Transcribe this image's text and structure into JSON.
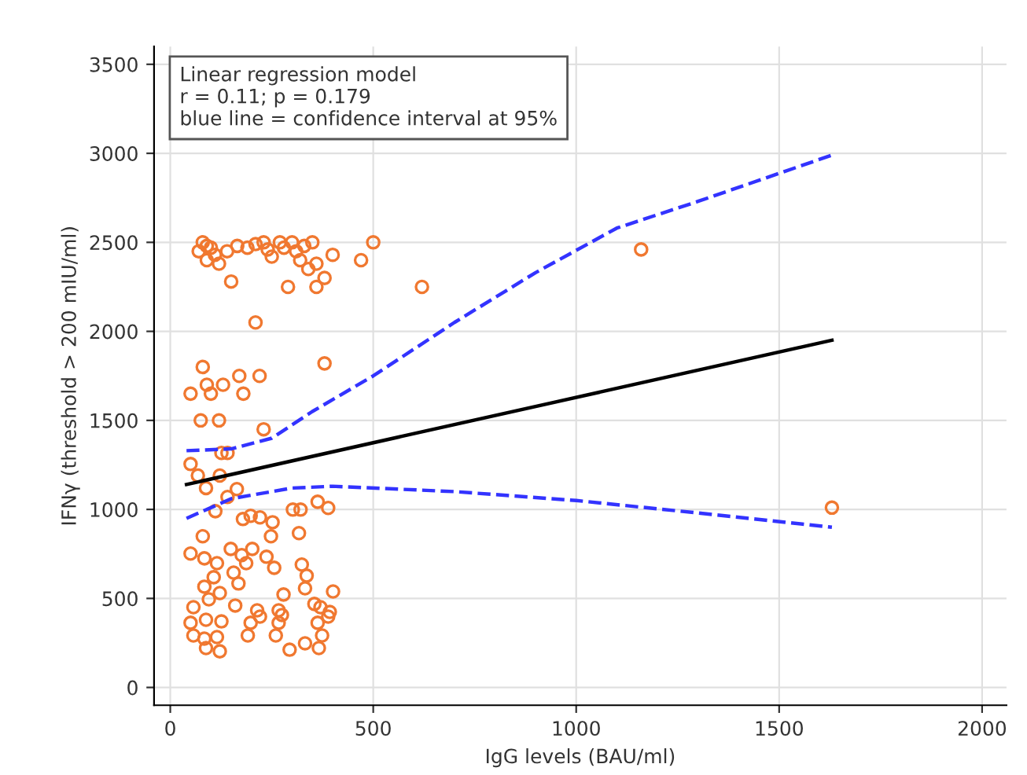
{
  "chart_data": {
    "type": "scatter",
    "xlabel": "IgG levels (BAU/ml)",
    "ylabel": "IFNγ (threshold > 200 mIU/ml)",
    "annotations": [
      "Linear regression model\nr = 0.11; p = 0.179\nblue line = confidence interval at 95%"
    ],
    "xlim": [
      -40,
      2060
    ],
    "ylim": [
      -100,
      3600
    ],
    "xticks": [
      0,
      500,
      1000,
      1500,
      2000
    ],
    "yticks": [
      0,
      500,
      1000,
      1500,
      2000,
      2500,
      3000,
      3500
    ],
    "grid": true,
    "legend": false,
    "series": [
      {
        "color": "#f07830",
        "marker": "circle",
        "x": [
          70,
          80,
          90,
          100,
          110,
          90,
          120,
          140,
          165,
          190,
          210,
          230,
          240,
          250,
          270,
          280,
          300,
          310,
          320,
          330,
          350,
          360,
          380,
          340,
          150,
          290,
          360,
          470,
          500,
          620,
          1160,
          400,
          210,
          50,
          80,
          90,
          100,
          130,
          170,
          180,
          220,
          380,
          75,
          120,
          230,
          50,
          68,
          126,
          141,
          122,
          88,
          164,
          141,
          111,
          179,
          198,
          221,
          252,
          302,
          321,
          363,
          389,
          80,
          248,
          317,
          50,
          84,
          115,
          149,
          202,
          176,
          237,
          256,
          324,
          107,
          156,
          187,
          336,
          84,
          122,
          168,
          279,
          332,
          401,
          57,
          95,
          160,
          214,
          267,
          355,
          393,
          370,
          50,
          88,
          126,
          57,
          84,
          115,
          88,
          122,
          198,
          191,
          221,
          267,
          260,
          275,
          294,
          332,
          366,
          363,
          389,
          374,
          1630
        ],
        "values": [
          2450,
          2500,
          2480,
          2470,
          2430,
          2400,
          2380,
          2450,
          2480,
          2470,
          2490,
          2500,
          2460,
          2420,
          2500,
          2470,
          2500,
          2450,
          2400,
          2480,
          2500,
          2380,
          2300,
          2350,
          2280,
          2250,
          2250,
          2400,
          2500,
          2250,
          2460,
          2430,
          2050,
          1650,
          1800,
          1700,
          1650,
          1700,
          1750,
          1650,
          1750,
          1820,
          1500,
          1500,
          1450,
          1255,
          1190,
          1317,
          1317,
          1190,
          1120,
          1114,
          1070,
          990,
          946,
          964,
          955,
          928,
          999,
          999,
          1043,
          1008,
          849,
          849,
          867,
          752,
          725,
          698,
          778,
          778,
          743,
          734,
          672,
          690,
          619,
          645,
          698,
          628,
          566,
          530,
          584,
          522,
          557,
          539,
          451,
          495,
          460,
          433,
          433,
          469,
          424,
          451,
          363,
          380,
          371,
          292,
          274,
          283,
          221,
          203,
          363,
          292,
          398,
          363,
          292,
          407,
          212,
          248,
          221,
          363,
          398,
          292,
          1010
        ]
      },
      {
        "type": "line",
        "color": "#000000",
        "marker": "none",
        "line_style": "solid",
        "x": [
          40,
          1630
        ],
        "values": [
          1140,
          1950
        ]
      },
      {
        "type": "line",
        "color": "#3333ff",
        "marker": "none",
        "line_style": "dashed",
        "x": [
          40,
          150,
          250,
          350,
          500,
          700,
          900,
          1100,
          1300,
          1630
        ],
        "values": [
          1330,
          1340,
          1400,
          1550,
          1750,
          2050,
          2330,
          2580,
          2730,
          2990
        ]
      },
      {
        "type": "line",
        "color": "#3333ff",
        "marker": "none",
        "line_style": "dashed",
        "x": [
          40,
          150,
          300,
          400,
          700,
          1000,
          1300,
          1630
        ],
        "values": [
          950,
          1060,
          1120,
          1130,
          1100,
          1050,
          980,
          900
        ]
      }
    ]
  }
}
